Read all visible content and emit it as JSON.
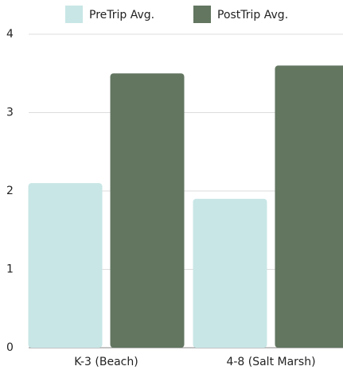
{
  "chart_data": {
    "type": "bar",
    "categories": [
      "K-3 (Beach)",
      "4-8 (Salt Marsh)"
    ],
    "series": [
      {
        "name": "PreTrip Avg.",
        "color": "#c8e6e6",
        "values": [
          2.1,
          1.9
        ]
      },
      {
        "name": "PostTrip Avg.",
        "color": "#627660",
        "values": [
          3.5,
          3.6
        ]
      }
    ],
    "ylim": [
      0,
      4
    ],
    "yticks": [
      0,
      1,
      2,
      3,
      4
    ],
    "grid": true,
    "legend": "top"
  }
}
